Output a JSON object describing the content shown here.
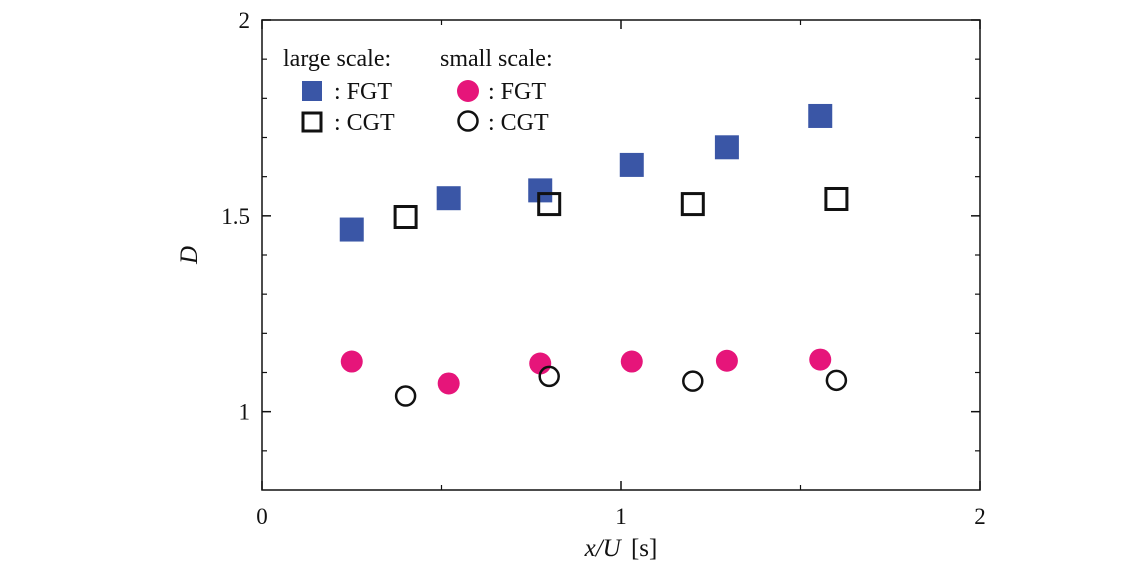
{
  "chart_data": {
    "type": "scatter",
    "xlabel_var": "x/U",
    "xlabel_unit": "[s]",
    "ylabel": "D",
    "xlim": [
      0,
      2
    ],
    "ylim": [
      0.8,
      2
    ],
    "x_ticks": [
      0,
      1,
      2
    ],
    "x_tick_labels": [
      "0",
      "1",
      "2"
    ],
    "y_ticks": [
      1,
      1.5,
      2
    ],
    "y_tick_labels": [
      "1",
      "1.5",
      "2"
    ],
    "grid": false,
    "legend": {
      "placement": "top-left",
      "group_titles": [
        "large scale:",
        "small scale:"
      ]
    },
    "series": [
      {
        "name": ": FGT",
        "group": "large scale",
        "marker": "square-filled",
        "color": "#3a56a6",
        "points": [
          {
            "x": 0.25,
            "y": 1.465
          },
          {
            "x": 0.52,
            "y": 1.545
          },
          {
            "x": 0.775,
            "y": 1.565
          },
          {
            "x": 1.03,
            "y": 1.63
          },
          {
            "x": 1.295,
            "y": 1.675
          },
          {
            "x": 1.555,
            "y": 1.755
          }
        ]
      },
      {
        "name": ": CGT",
        "group": "large scale",
        "marker": "square-open",
        "color": "#111111",
        "points": [
          {
            "x": 0.4,
            "y": 1.497
          },
          {
            "x": 0.8,
            "y": 1.53
          },
          {
            "x": 1.2,
            "y": 1.53
          },
          {
            "x": 1.6,
            "y": 1.543
          }
        ]
      },
      {
        "name": ": FGT",
        "group": "small scale",
        "marker": "circle-filled",
        "color": "#e6157a",
        "points": [
          {
            "x": 0.25,
            "y": 1.128
          },
          {
            "x": 0.52,
            "y": 1.072
          },
          {
            "x": 0.775,
            "y": 1.123
          },
          {
            "x": 1.03,
            "y": 1.128
          },
          {
            "x": 1.295,
            "y": 1.13
          },
          {
            "x": 1.555,
            "y": 1.133
          }
        ]
      },
      {
        "name": ": CGT",
        "group": "small scale",
        "marker": "circle-open",
        "color": "#111111",
        "points": [
          {
            "x": 0.4,
            "y": 1.04
          },
          {
            "x": 0.8,
            "y": 1.09
          },
          {
            "x": 1.2,
            "y": 1.078
          },
          {
            "x": 1.6,
            "y": 1.08
          }
        ]
      }
    ]
  }
}
